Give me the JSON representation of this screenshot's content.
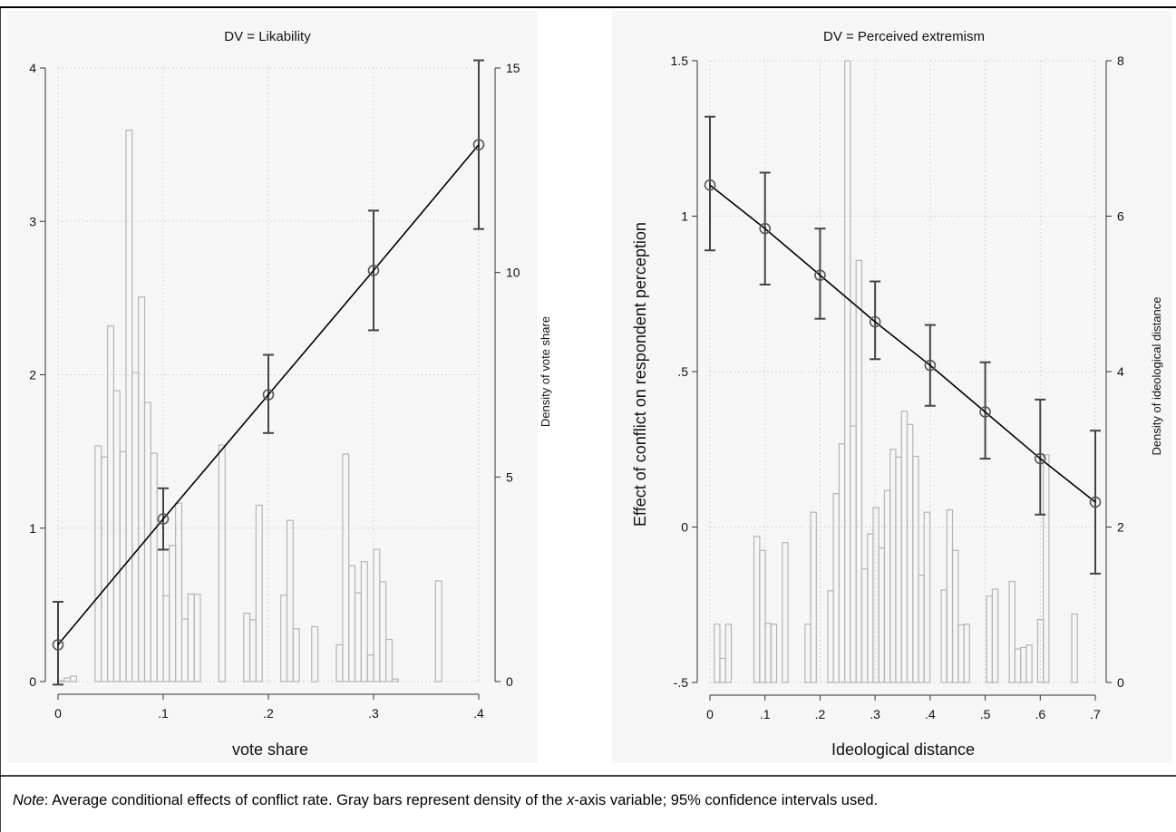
{
  "note": {
    "prefix": "Note",
    "text_before": ": Average conditional effects of conflict rate. Gray bars represent density of the ",
    "italic": "x",
    "text_after": "-axis variable; 95% confidence intervals used."
  },
  "shared_ylabel": "Effect of conflict on respondent perception",
  "colors": {
    "line": "#000000",
    "ci": "#444444",
    "bars": "#b5b5b5",
    "grid": "#cfcfcf",
    "panel_bg": "#f6f6f6"
  },
  "chart_data": [
    {
      "type": "line",
      "title": "DV = Likability",
      "xlabel": "vote share",
      "ylabel": "",
      "y2label": "Density of vote share",
      "xlim": [
        0,
        0.4
      ],
      "ylim": [
        0,
        4
      ],
      "y2lim": [
        0,
        15
      ],
      "xticks": [
        0,
        0.1,
        0.2,
        0.3,
        0.4
      ],
      "xtick_labels": [
        "0",
        ".1",
        ".2",
        ".3",
        ".4"
      ],
      "yticks": [
        0,
        1,
        2,
        3,
        4
      ],
      "ytick_labels": [
        "0",
        "1",
        "2",
        "3",
        "4"
      ],
      "y2ticks": [
        0,
        5,
        10,
        15
      ],
      "y2tick_labels": [
        "0",
        "5",
        "10",
        "15"
      ],
      "grid": true,
      "series": {
        "x": [
          0,
          0.1,
          0.2,
          0.3,
          0.4
        ],
        "y": [
          0.24,
          1.06,
          1.87,
          2.68,
          3.5
        ],
        "ci_low": [
          -0.02,
          0.86,
          1.62,
          2.29,
          2.95
        ],
        "ci_high": [
          0.52,
          1.26,
          2.13,
          3.07,
          4.05
        ]
      },
      "histogram": {
        "bin_width": 0.00588,
        "x": [
          0.0029,
          0.0088,
          0.0147,
          0.0382,
          0.0441,
          0.05,
          0.0559,
          0.0618,
          0.0676,
          0.0735,
          0.0794,
          0.0853,
          0.0912,
          0.0971,
          0.1029,
          0.1088,
          0.1147,
          0.1206,
          0.1265,
          0.1324,
          0.1559,
          0.1794,
          0.1853,
          0.1912,
          0.2147,
          0.2206,
          0.2265,
          0.2441,
          0.2676,
          0.2735,
          0.2794,
          0.2853,
          0.2912,
          0.2971,
          0.3029,
          0.3088,
          0.3147,
          0.3206,
          0.3618
        ],
        "density": [
          0.02,
          0.09,
          0.13,
          5.76,
          5.49,
          8.69,
          7.11,
          5.62,
          13.48,
          7.56,
          9.4,
          6.82,
          5.58,
          3.21,
          2.1,
          3.33,
          4.36,
          1.53,
          2.14,
          2.13,
          5.78,
          1.67,
          1.51,
          4.31,
          2.11,
          3.94,
          1.29,
          1.34,
          0.9,
          5.56,
          2.83,
          2.17,
          2.93,
          0.65,
          3.23,
          2.44,
          1.03,
          0.06,
          2.46
        ]
      }
    },
    {
      "type": "line",
      "title": "DV = Perceived extremism",
      "xlabel": "Ideological distance",
      "ylabel": "Effect of conflict on respondent perception",
      "y2label": "Density of ideological distance",
      "xlim": [
        0,
        0.7
      ],
      "ylim": [
        -0.5,
        1.5
      ],
      "y2lim": [
        0,
        8
      ],
      "xticks": [
        0,
        0.1,
        0.2,
        0.3,
        0.4,
        0.5,
        0.6,
        0.7
      ],
      "xtick_labels": [
        "0",
        ".1",
        ".2",
        ".3",
        ".4",
        ".5",
        ".6",
        ".7"
      ],
      "yticks": [
        -0.5,
        0,
        0.5,
        1,
        1.5
      ],
      "ytick_labels": [
        "-.5",
        "0",
        ".5",
        "1",
        "1.5"
      ],
      "y2ticks": [
        0,
        2,
        4,
        6,
        8
      ],
      "y2tick_labels": [
        "0",
        "2",
        "4",
        "6",
        "8"
      ],
      "grid": true,
      "series": {
        "x": [
          0,
          0.1,
          0.2,
          0.3,
          0.4,
          0.5,
          0.6,
          0.7
        ],
        "y": [
          1.1,
          0.96,
          0.81,
          0.66,
          0.52,
          0.37,
          0.22,
          0.08
        ],
        "ci_low": [
          0.89,
          0.78,
          0.67,
          0.54,
          0.39,
          0.22,
          0.04,
          -0.15
        ],
        "ci_high": [
          1.32,
          1.14,
          0.96,
          0.79,
          0.65,
          0.53,
          0.41,
          0.31
        ]
      },
      "histogram": {
        "bin_width": 0.0103,
        "x": [
          0.0129,
          0.0232,
          0.0335,
          0.0851,
          0.0954,
          0.1057,
          0.116,
          0.1366,
          0.1778,
          0.1881,
          0.2191,
          0.2294,
          0.2397,
          0.25,
          0.2603,
          0.2706,
          0.2809,
          0.2912,
          0.3015,
          0.3118,
          0.3221,
          0.3324,
          0.3427,
          0.3531,
          0.3634,
          0.3737,
          0.384,
          0.3943,
          0.4252,
          0.4355,
          0.4458,
          0.4561,
          0.4664,
          0.5077,
          0.518,
          0.5489,
          0.5592,
          0.5695,
          0.5798,
          0.6004,
          0.6107,
          0.6623
        ],
        "density": [
          0.75,
          0.31,
          0.75,
          1.88,
          1.7,
          0.76,
          0.75,
          1.8,
          0.75,
          2.19,
          1.18,
          2.43,
          3.07,
          8.0,
          3.3,
          5.43,
          1.46,
          1.91,
          2.25,
          1.73,
          2.47,
          3.0,
          2.9,
          3.49,
          3.32,
          2.91,
          1.38,
          2.19,
          1.19,
          2.22,
          1.7,
          0.74,
          0.75,
          1.11,
          1.2,
          1.3,
          0.43,
          0.45,
          0.48,
          0.81,
          2.93,
          0.88
        ]
      }
    }
  ]
}
